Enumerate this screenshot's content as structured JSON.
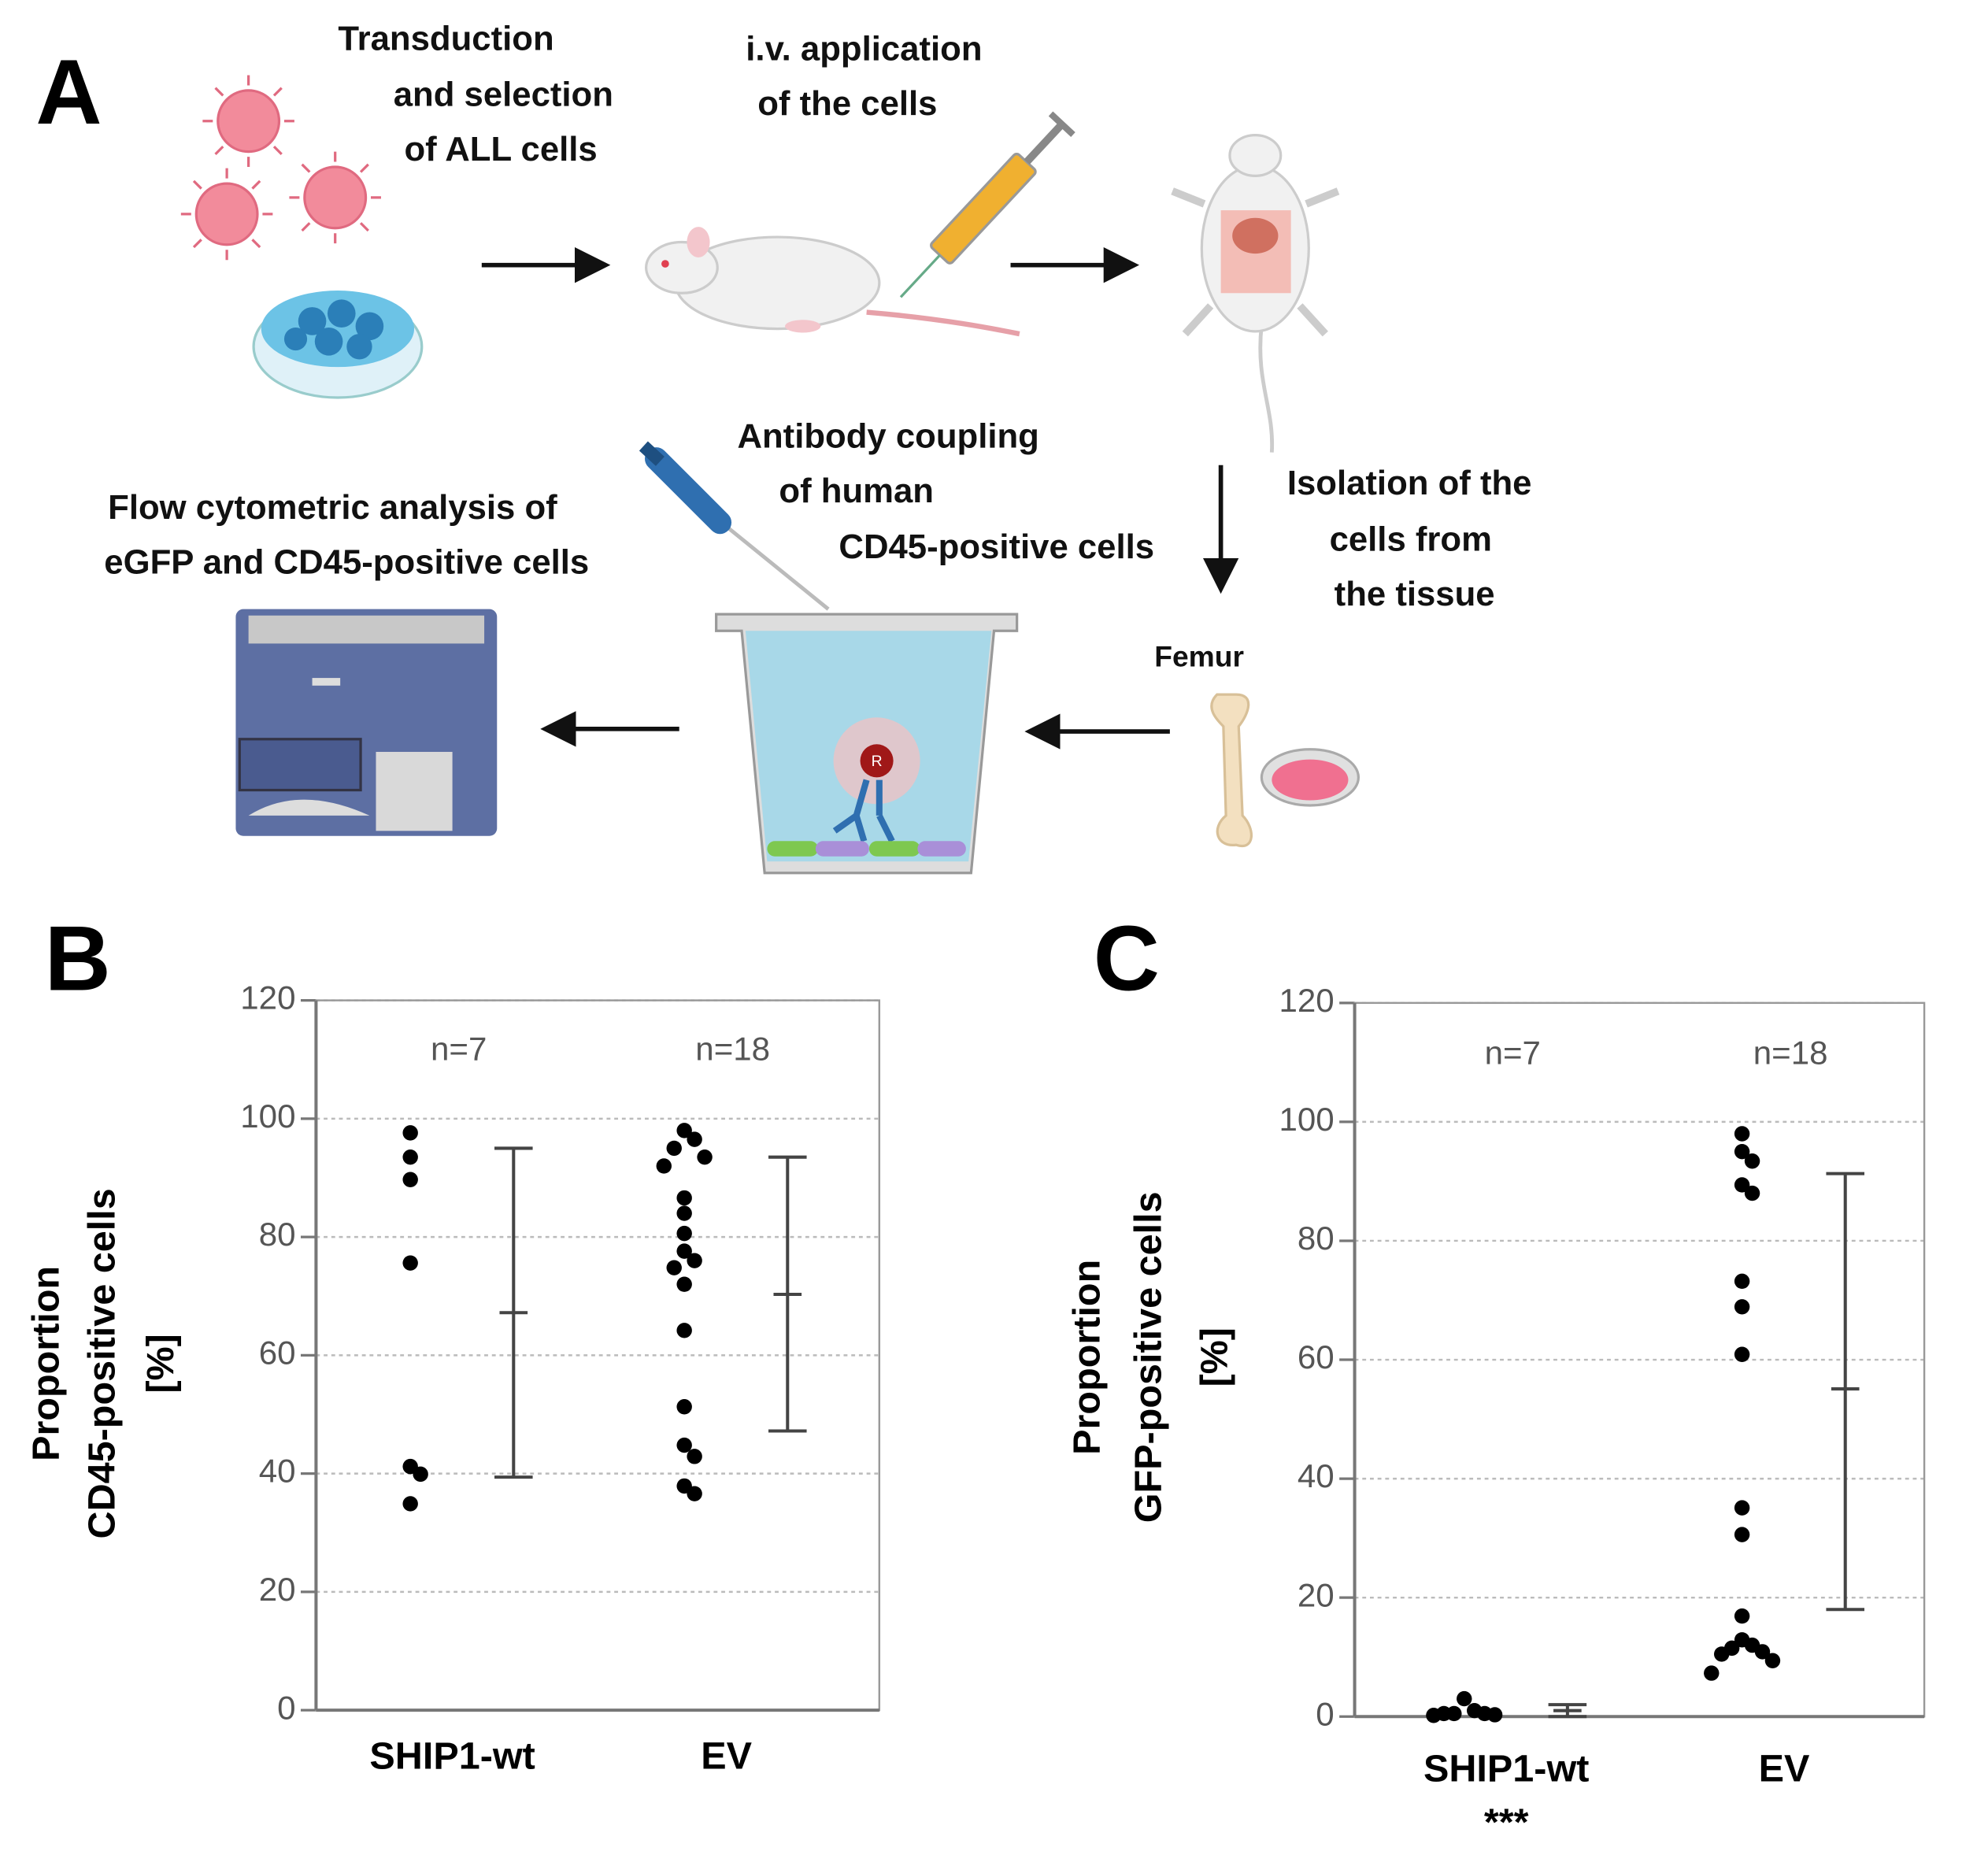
{
  "diagram": {
    "panel_label": "A",
    "steps": [
      {
        "lines": [
          "Transduction",
          "and selection",
          "of ALL cells"
        ]
      },
      {
        "lines": [
          "i.v. application",
          "of the cells"
        ]
      },
      {
        "lines": [
          "Isolation of the",
          "cells from",
          "the tissue"
        ]
      },
      {
        "lines": [
          "Antibody coupling",
          "of human",
          "CD45-positive cells"
        ]
      },
      {
        "lines": [
          "Flow cytometric analysis of",
          "eGFP and CD45-positive cells"
        ]
      }
    ],
    "femur_label": "Femur"
  },
  "chart_data": [
    {
      "type": "dot_plot",
      "panel_label": "B",
      "y_label": [
        "Proportion",
        "CD45-positive cells",
        "[%]"
      ],
      "categories": [
        "SHIP1-wt",
        "EV"
      ],
      "annotations": [
        "n=7",
        "n=18"
      ],
      "points": [
        [
          97.6,
          93.5,
          89.7,
          75.6,
          41.2,
          39.9,
          34.9
        ],
        [
          98,
          96.5,
          95,
          93.5,
          92,
          86.6,
          84,
          80.6,
          77.6,
          76,
          74.8,
          72,
          64.2,
          51.3,
          44.8,
          42.9,
          37.9,
          36.6
        ]
      ],
      "mean": [
        67.2,
        70.3
      ],
      "upper": [
        95,
        93.5
      ],
      "lower": [
        39.4,
        47.2
      ],
      "color": "#000000",
      "ylim": [
        0,
        120
      ],
      "yticks": [
        0,
        20,
        40,
        60,
        80,
        100,
        120
      ],
      "grid": true
    },
    {
      "type": "dot_plot",
      "panel_label": "C",
      "y_label": [
        "Proportion",
        "GFP-positive cells",
        "[%]"
      ],
      "categories": [
        "SHIP1-wt",
        "EV"
      ],
      "category_notes": [
        "***",
        null
      ],
      "annotations": [
        "n=7",
        "n=18"
      ],
      "points": [
        [
          3,
          1,
          0.5,
          0.5,
          0.5,
          0.3,
          0.2
        ],
        [
          98,
          95,
          93.4,
          89.4,
          88,
          73.2,
          68.9,
          60.9,
          35.1,
          30.6,
          16.9,
          12.9,
          12,
          11.5,
          10.9,
          10.5,
          9.4,
          7.3
        ]
      ],
      "mean": [
        1,
        55.1
      ],
      "upper": [
        2,
        91.3
      ],
      "lower": [
        0,
        18
      ],
      "color": "#000000",
      "ylim": [
        0,
        120
      ],
      "yticks": [
        0,
        20,
        40,
        60,
        80,
        100,
        120
      ],
      "grid": true
    }
  ]
}
